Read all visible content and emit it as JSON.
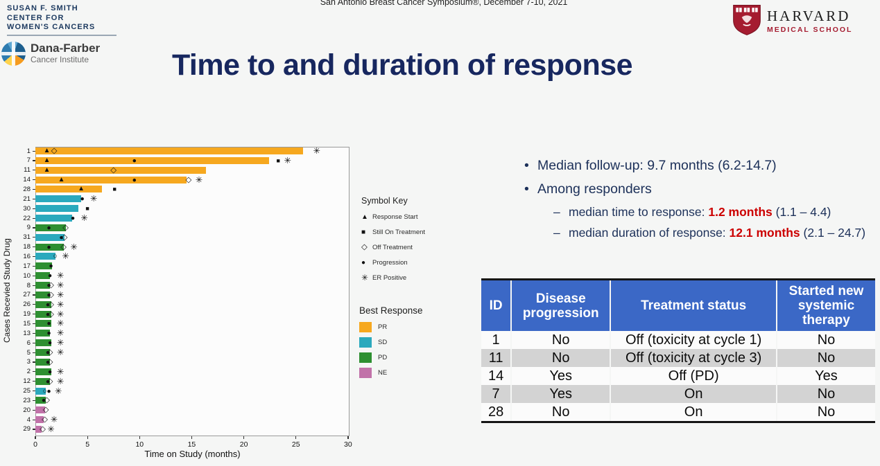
{
  "header": {
    "symposium": "San Antonio Breast Cancer Symposium®, December 7-10, 2021",
    "smith_center_lines": [
      "SUSAN F. SMITH",
      "CENTER FOR",
      "WOMEN'S CANCERS"
    ],
    "dana_farber": {
      "name": "Dana-Farber",
      "subtitle": "Cancer Institute"
    },
    "harvard": {
      "name": "HARVARD",
      "subtitle": "MEDICAL SCHOOL"
    }
  },
  "title": "Time to and duration of response",
  "bullets": {
    "b1": "Median follow-up:  9.7 months (6.2-14.7)",
    "b2": "Among responders",
    "sub1_prefix": "median time to response:  ",
    "sub1_value": "1.2 months",
    "sub1_suffix": " (1.1 – 4.4)",
    "sub2_prefix": "median duration of response:  ",
    "sub2_value": "12.1 months",
    "sub2_suffix": " (2.1 – 24.7)"
  },
  "legend": {
    "symbol_key_title": "Symbol Key",
    "symbols": [
      {
        "icon": "response-start",
        "label": "Response Start"
      },
      {
        "icon": "still-on-treatment",
        "label": "Still On Treatment"
      },
      {
        "icon": "off-treatment",
        "label": "Off Treatment"
      },
      {
        "icon": "progression",
        "label": "Progression"
      },
      {
        "icon": "er-positive",
        "label": "ER Positive"
      }
    ],
    "best_response_title": "Best Response",
    "responses": [
      {
        "code": "PR",
        "color": "#F6A81F"
      },
      {
        "code": "SD",
        "color": "#2BA9BD"
      },
      {
        "code": "PD",
        "color": "#2E8F31"
      },
      {
        "code": "NE",
        "color": "#C172A9"
      }
    ]
  },
  "table": {
    "headers": [
      "ID",
      "Disease progression",
      "Treatment status",
      "Started new systemic therapy"
    ],
    "rows": [
      [
        "1",
        "No",
        "Off (toxicity at cycle 1)",
        "No"
      ],
      [
        "11",
        "No",
        "Off (toxicity at cycle 3)",
        "No"
      ],
      [
        "14",
        "Yes",
        "Off (PD)",
        "Yes"
      ],
      [
        "7",
        "Yes",
        "On",
        "No"
      ],
      [
        "28",
        "No",
        "On",
        "No"
      ]
    ]
  },
  "colors": {
    "title_navy": "#17275F",
    "text_navy": "#1C3059",
    "highlight_red": "#CC0000",
    "table_header_blue": "#3B68C6",
    "table_stripe_gray": "#D3D3D3",
    "harvard_crimson": "#A51C30"
  },
  "chart_data": {
    "type": "bar",
    "orientation": "horizontal",
    "title": "",
    "xlabel": "Time on Study (months)",
    "ylabel": "Cases Recevied Study Drug",
    "xlim": [
      0,
      30
    ],
    "xticks": [
      0,
      5,
      10,
      15,
      20,
      25,
      30
    ],
    "grid": false,
    "marker_glyphs": {
      "response-start": "▲",
      "still-on-treatment": "■",
      "off-treatment": "◇",
      "progression": "●",
      "open-circle": "○",
      "er-positive": "✳"
    },
    "response_colors": {
      "PR": "#F6A81F",
      "SD": "#2BA9BD",
      "PD": "#2E8F31",
      "NE": "#C172A9"
    },
    "rows": [
      {
        "id": "1",
        "response": "PR",
        "months": 25.7,
        "markers": [
          {
            "type": "response-start",
            "at": 1.1
          },
          {
            "type": "off-treatment",
            "at": 1.8
          },
          {
            "type": "er-positive",
            "at": 27.0
          }
        ]
      },
      {
        "id": "7",
        "response": "PR",
        "months": 22.4,
        "markers": [
          {
            "type": "response-start",
            "at": 1.1
          },
          {
            "type": "progression",
            "at": 9.5
          },
          {
            "type": "still-on-treatment",
            "at": 23.3
          },
          {
            "type": "er-positive",
            "at": 24.2
          }
        ]
      },
      {
        "id": "11",
        "response": "PR",
        "months": 16.4,
        "markers": [
          {
            "type": "response-start",
            "at": 1.1
          },
          {
            "type": "off-treatment",
            "at": 7.5
          }
        ]
      },
      {
        "id": "14",
        "response": "PR",
        "months": 14.5,
        "markers": [
          {
            "type": "response-start",
            "at": 2.5
          },
          {
            "type": "progression",
            "at": 9.5
          },
          {
            "type": "off-treatment",
            "at": 14.7
          },
          {
            "type": "er-positive",
            "at": 15.7
          }
        ]
      },
      {
        "id": "28",
        "response": "PR",
        "months": 6.4,
        "markers": [
          {
            "type": "response-start",
            "at": 4.4
          },
          {
            "type": "still-on-treatment",
            "at": 7.6
          }
        ]
      },
      {
        "id": "21",
        "response": "SD",
        "months": 4.4,
        "markers": [
          {
            "type": "progression",
            "at": 4.5
          },
          {
            "type": "er-positive",
            "at": 5.6
          }
        ]
      },
      {
        "id": "30",
        "response": "SD",
        "months": 4.1,
        "markers": [
          {
            "type": "still-on-treatment",
            "at": 5.0
          }
        ]
      },
      {
        "id": "22",
        "response": "SD",
        "months": 3.5,
        "markers": [
          {
            "type": "progression",
            "at": 3.6
          },
          {
            "type": "er-positive",
            "at": 4.7
          }
        ]
      },
      {
        "id": "9",
        "response": "PD",
        "months": 2.9,
        "markers": [
          {
            "type": "progression",
            "at": 1.3
          },
          {
            "type": "off-treatment",
            "at": 2.9
          }
        ]
      },
      {
        "id": "31",
        "response": "SD",
        "months": 2.8,
        "markers": [
          {
            "type": "progression",
            "at": 2.5
          },
          {
            "type": "off-treatment",
            "at": 2.8
          }
        ]
      },
      {
        "id": "18",
        "response": "PD",
        "months": 2.7,
        "markers": [
          {
            "type": "progression",
            "at": 1.3
          },
          {
            "type": "off-treatment",
            "at": 2.7
          },
          {
            "type": "er-positive",
            "at": 3.7
          }
        ]
      },
      {
        "id": "16",
        "response": "SD",
        "months": 1.9,
        "markers": [
          {
            "type": "open-circle",
            "at": 1.9
          },
          {
            "type": "er-positive",
            "at": 2.9
          }
        ]
      },
      {
        "id": "17",
        "response": "PD",
        "months": 1.6,
        "markers": [
          {
            "type": "progression",
            "at": 1.5
          }
        ]
      },
      {
        "id": "10",
        "response": "PD",
        "months": 1.4,
        "markers": [
          {
            "type": "progression",
            "at": 1.4
          },
          {
            "type": "er-positive",
            "at": 2.4
          }
        ]
      },
      {
        "id": "8",
        "response": "PD",
        "months": 1.4,
        "markers": [
          {
            "type": "progression",
            "at": 1.3
          },
          {
            "type": "off-treatment",
            "at": 1.5
          },
          {
            "type": "er-positive",
            "at": 2.4
          }
        ]
      },
      {
        "id": "27",
        "response": "PD",
        "months": 1.4,
        "markers": [
          {
            "type": "progression",
            "at": 1.3
          },
          {
            "type": "off-treatment",
            "at": 1.5
          },
          {
            "type": "er-positive",
            "at": 2.4
          }
        ]
      },
      {
        "id": "26",
        "response": "PD",
        "months": 1.5,
        "markers": [
          {
            "type": "progression",
            "at": 1.2
          },
          {
            "type": "off-treatment",
            "at": 1.5
          },
          {
            "type": "er-positive",
            "at": 2.4
          }
        ]
      },
      {
        "id": "19",
        "response": "PD",
        "months": 1.5,
        "markers": [
          {
            "type": "progression",
            "at": 1.2
          },
          {
            "type": "off-treatment",
            "at": 1.5
          },
          {
            "type": "er-positive",
            "at": 2.4
          }
        ]
      },
      {
        "id": "15",
        "response": "PD",
        "months": 1.5,
        "markers": [
          {
            "type": "progression",
            "at": 1.3
          },
          {
            "type": "er-positive",
            "at": 2.4
          }
        ]
      },
      {
        "id": "13",
        "response": "PD",
        "months": 1.4,
        "markers": [
          {
            "type": "progression",
            "at": 1.3
          },
          {
            "type": "er-positive",
            "at": 2.4
          }
        ]
      },
      {
        "id": "6",
        "response": "PD",
        "months": 1.5,
        "markers": [
          {
            "type": "progression",
            "at": 1.4
          },
          {
            "type": "er-positive",
            "at": 2.4
          }
        ]
      },
      {
        "id": "5",
        "response": "PD",
        "months": 1.4,
        "markers": [
          {
            "type": "progression",
            "at": 1.2
          },
          {
            "type": "off-treatment",
            "at": 1.4
          },
          {
            "type": "er-positive",
            "at": 2.4
          }
        ]
      },
      {
        "id": "3",
        "response": "PD",
        "months": 1.4,
        "markers": [
          {
            "type": "progression",
            "at": 1.2
          },
          {
            "type": "off-treatment",
            "at": 1.4
          }
        ]
      },
      {
        "id": "2",
        "response": "PD",
        "months": 1.5,
        "markers": [
          {
            "type": "progression",
            "at": 1.4
          },
          {
            "type": "er-positive",
            "at": 2.4
          }
        ]
      },
      {
        "id": "12",
        "response": "PD",
        "months": 1.4,
        "markers": [
          {
            "type": "progression",
            "at": 1.2
          },
          {
            "type": "off-treatment",
            "at": 1.4
          },
          {
            "type": "er-positive",
            "at": 2.4
          }
        ]
      },
      {
        "id": "25",
        "response": "SD",
        "months": 1.0,
        "markers": [
          {
            "type": "open-circle",
            "at": 0.9
          },
          {
            "type": "progression",
            "at": 1.3
          },
          {
            "type": "er-positive",
            "at": 2.2
          }
        ]
      },
      {
        "id": "23",
        "response": "PD",
        "months": 1.0,
        "markers": [
          {
            "type": "progression",
            "at": 0.8
          },
          {
            "type": "off-treatment",
            "at": 1.1
          }
        ]
      },
      {
        "id": "20",
        "response": "NE",
        "months": 0.9,
        "markers": [
          {
            "type": "off-treatment",
            "at": 1.0
          }
        ]
      },
      {
        "id": "4",
        "response": "NE",
        "months": 0.8,
        "markers": [
          {
            "type": "off-treatment",
            "at": 0.9
          },
          {
            "type": "er-positive",
            "at": 1.8
          }
        ]
      },
      {
        "id": "29",
        "response": "NE",
        "months": 0.6,
        "markers": [
          {
            "type": "off-treatment",
            "at": 0.7
          },
          {
            "type": "er-positive",
            "at": 1.5
          }
        ]
      }
    ]
  }
}
